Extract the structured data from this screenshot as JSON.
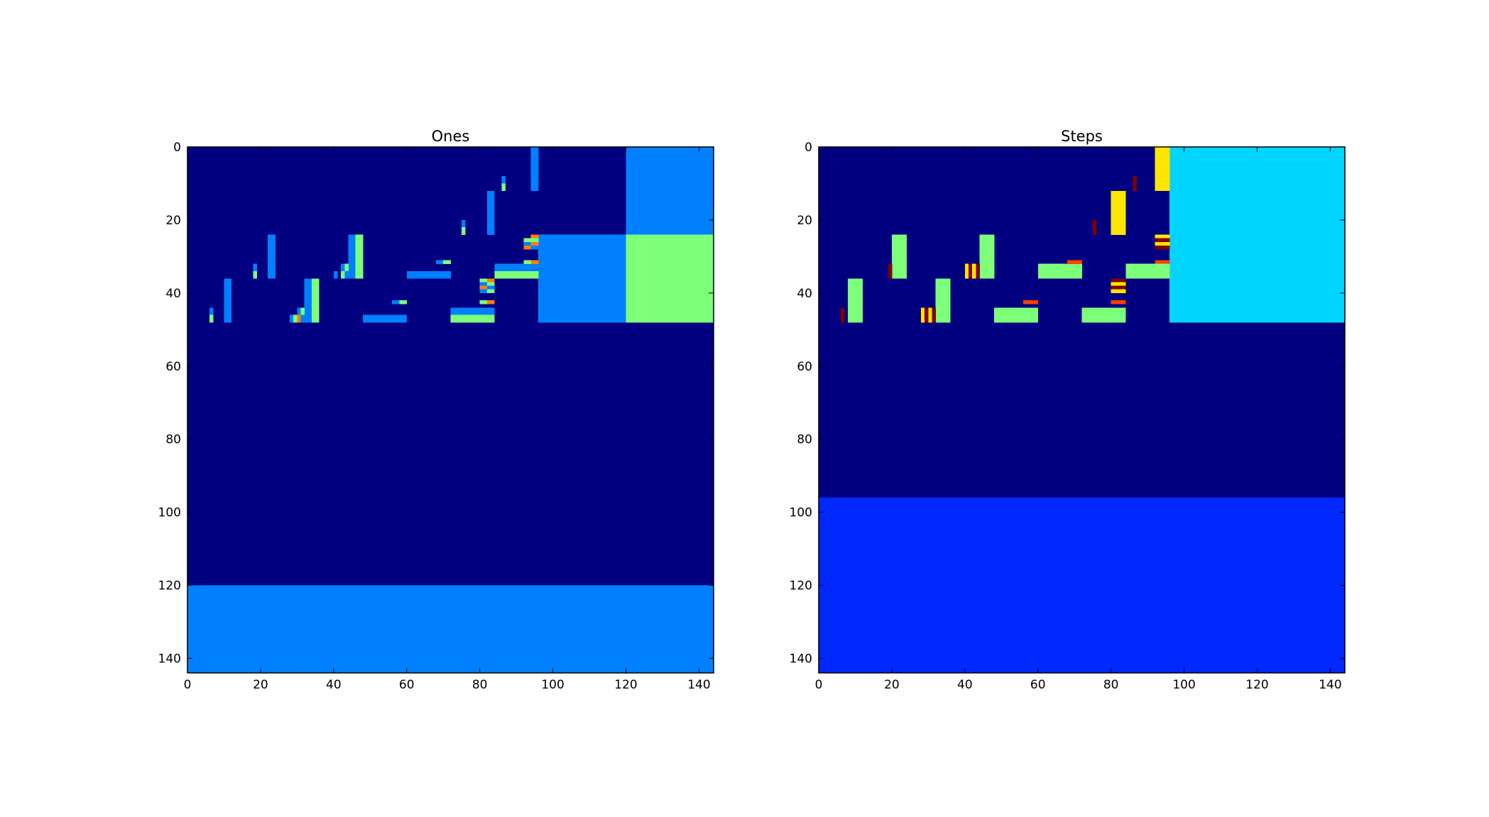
{
  "chart_data": [
    {
      "type": "heatmap",
      "title": "Ones",
      "xlim": [
        0,
        144
      ],
      "ylim": [
        144,
        0
      ],
      "xticks": [
        "0",
        "20",
        "40",
        "60",
        "80",
        "100",
        "120",
        "140"
      ],
      "yticks": [
        "0",
        "20",
        "40",
        "60",
        "80",
        "100",
        "120",
        "140"
      ],
      "colormap": "jet",
      "background_color": "#000080",
      "cells": [
        {
          "x": 120,
          "y": 0,
          "w": 24,
          "h": 24,
          "color": "#0080ff"
        },
        {
          "x": 96,
          "y": 24,
          "w": 24,
          "h": 24,
          "color": "#0080ff"
        },
        {
          "x": 120,
          "y": 24,
          "w": 24,
          "h": 24,
          "color": "#7dff7a"
        },
        {
          "x": 0,
          "y": 120,
          "w": 144,
          "h": 24,
          "color": "#0080ff"
        },
        {
          "x": 94,
          "y": 0,
          "w": 2,
          "h": 12,
          "color": "#0080ff"
        },
        {
          "x": 86,
          "y": 8,
          "w": 1,
          "h": 2,
          "color": "#0080ff"
        },
        {
          "x": 86,
          "y": 10,
          "w": 1,
          "h": 2,
          "color": "#7dff7a"
        },
        {
          "x": 82,
          "y": 12,
          "w": 2,
          "h": 12,
          "color": "#0080ff"
        },
        {
          "x": 75,
          "y": 20,
          "w": 1,
          "h": 2,
          "color": "#0080ff"
        },
        {
          "x": 75,
          "y": 22,
          "w": 1,
          "h": 2,
          "color": "#7dff7a"
        },
        {
          "x": 22,
          "y": 24,
          "w": 2,
          "h": 12,
          "color": "#0080ff"
        },
        {
          "x": 44,
          "y": 24,
          "w": 2,
          "h": 12,
          "color": "#0080ff"
        },
        {
          "x": 46,
          "y": 24,
          "w": 2,
          "h": 12,
          "color": "#7dff7a"
        },
        {
          "x": 92,
          "y": 25,
          "w": 2,
          "h": 1,
          "color": "#7dff7a"
        },
        {
          "x": 92,
          "y": 26,
          "w": 2,
          "h": 1,
          "color": "#0080ff"
        },
        {
          "x": 92,
          "y": 27,
          "w": 2,
          "h": 1,
          "color": "#ff8000"
        },
        {
          "x": 94,
          "y": 24,
          "w": 2,
          "h": 1,
          "color": "#ff8000"
        },
        {
          "x": 94,
          "y": 25,
          "w": 2,
          "h": 1,
          "color": "#7dff7a"
        },
        {
          "x": 94,
          "y": 26,
          "w": 2,
          "h": 1,
          "color": "#ff8000"
        },
        {
          "x": 94,
          "y": 27,
          "w": 2,
          "h": 1,
          "color": "#0080ff"
        },
        {
          "x": 18,
          "y": 32,
          "w": 1,
          "h": 2,
          "color": "#0080ff"
        },
        {
          "x": 18,
          "y": 34,
          "w": 1,
          "h": 2,
          "color": "#7dff7a"
        },
        {
          "x": 42,
          "y": 32,
          "w": 1,
          "h": 2,
          "color": "#0080ff"
        },
        {
          "x": 43,
          "y": 32,
          "w": 1,
          "h": 2,
          "color": "#7dff7a"
        },
        {
          "x": 42,
          "y": 34,
          "w": 1,
          "h": 2,
          "color": "#7dff7a"
        },
        {
          "x": 43,
          "y": 34,
          "w": 1,
          "h": 2,
          "color": "#0080ff"
        },
        {
          "x": 40,
          "y": 34,
          "w": 1,
          "h": 2,
          "color": "#0080ff"
        },
        {
          "x": 68,
          "y": 31,
          "w": 2,
          "h": 1,
          "color": "#0080ff"
        },
        {
          "x": 70,
          "y": 31,
          "w": 2,
          "h": 1,
          "color": "#7dff7a"
        },
        {
          "x": 60,
          "y": 34,
          "w": 12,
          "h": 2,
          "color": "#0080ff"
        },
        {
          "x": 84,
          "y": 32,
          "w": 12,
          "h": 2,
          "color": "#0080ff"
        },
        {
          "x": 84,
          "y": 34,
          "w": 12,
          "h": 2,
          "color": "#7dff7a"
        },
        {
          "x": 94,
          "y": 31,
          "w": 2,
          "h": 1,
          "color": "#ff8000"
        },
        {
          "x": 92,
          "y": 31,
          "w": 2,
          "h": 1,
          "color": "#7dff7a"
        },
        {
          "x": 80,
          "y": 36,
          "w": 2,
          "h": 1,
          "color": "#7dff7a"
        },
        {
          "x": 82,
          "y": 36,
          "w": 2,
          "h": 1,
          "color": "#ff8000"
        },
        {
          "x": 80,
          "y": 37,
          "w": 2,
          "h": 1,
          "color": "#0080ff"
        },
        {
          "x": 82,
          "y": 37,
          "w": 2,
          "h": 1,
          "color": "#7dff7a"
        },
        {
          "x": 80,
          "y": 38,
          "w": 2,
          "h": 1,
          "color": "#ff8000"
        },
        {
          "x": 82,
          "y": 38,
          "w": 2,
          "h": 1,
          "color": "#0080ff"
        },
        {
          "x": 80,
          "y": 39,
          "w": 2,
          "h": 1,
          "color": "#0080ff"
        },
        {
          "x": 82,
          "y": 39,
          "w": 2,
          "h": 1,
          "color": "#7dff7a"
        },
        {
          "x": 80,
          "y": 42,
          "w": 2,
          "h": 1,
          "color": "#7dff7a"
        },
        {
          "x": 82,
          "y": 42,
          "w": 2,
          "h": 1,
          "color": "#ff8000"
        },
        {
          "x": 10,
          "y": 36,
          "w": 2,
          "h": 12,
          "color": "#0080ff"
        },
        {
          "x": 32,
          "y": 36,
          "w": 2,
          "h": 12,
          "color": "#0080ff"
        },
        {
          "x": 34,
          "y": 36,
          "w": 2,
          "h": 12,
          "color": "#7dff7a"
        },
        {
          "x": 56,
          "y": 42,
          "w": 2,
          "h": 1,
          "color": "#0080ff"
        },
        {
          "x": 58,
          "y": 42,
          "w": 2,
          "h": 1,
          "color": "#7dff7a"
        },
        {
          "x": 6,
          "y": 44,
          "w": 1,
          "h": 2,
          "color": "#0080ff"
        },
        {
          "x": 6,
          "y": 46,
          "w": 1,
          "h": 2,
          "color": "#7dff7a"
        },
        {
          "x": 30,
          "y": 44,
          "w": 1,
          "h": 2,
          "color": "#0080ff"
        },
        {
          "x": 31,
          "y": 44,
          "w": 1,
          "h": 2,
          "color": "#7dff7a"
        },
        {
          "x": 28,
          "y": 46,
          "w": 1,
          "h": 2,
          "color": "#0080ff"
        },
        {
          "x": 29,
          "y": 46,
          "w": 1,
          "h": 2,
          "color": "#7dff7a"
        },
        {
          "x": 30,
          "y": 46,
          "w": 1,
          "h": 2,
          "color": "#ff8000"
        },
        {
          "x": 31,
          "y": 46,
          "w": 1,
          "h": 2,
          "color": "#0080ff"
        },
        {
          "x": 48,
          "y": 46,
          "w": 12,
          "h": 2,
          "color": "#0080ff"
        },
        {
          "x": 72,
          "y": 44,
          "w": 12,
          "h": 2,
          "color": "#0080ff"
        },
        {
          "x": 72,
          "y": 46,
          "w": 12,
          "h": 2,
          "color": "#7dff7a"
        }
      ]
    },
    {
      "type": "heatmap",
      "title": "Steps",
      "xlim": [
        0,
        144
      ],
      "ylim": [
        144,
        0
      ],
      "xticks": [
        "0",
        "20",
        "40",
        "60",
        "80",
        "100",
        "120",
        "140"
      ],
      "yticks": [
        "0",
        "20",
        "40",
        "60",
        "80",
        "100",
        "120",
        "140"
      ],
      "colormap": "jet",
      "background_color": "#000080",
      "cells": [
        {
          "x": 96,
          "y": 0,
          "w": 48,
          "h": 48,
          "color": "#00d5ff"
        },
        {
          "x": 0,
          "y": 96,
          "w": 144,
          "h": 48,
          "color": "#0028ff"
        },
        {
          "x": 92,
          "y": 0,
          "w": 4,
          "h": 12,
          "color": "#ffe600"
        },
        {
          "x": 86,
          "y": 8,
          "w": 1,
          "h": 4,
          "color": "#800000"
        },
        {
          "x": 80,
          "y": 12,
          "w": 4,
          "h": 12,
          "color": "#ffe600"
        },
        {
          "x": 75,
          "y": 20,
          "w": 1,
          "h": 4,
          "color": "#800000"
        },
        {
          "x": 20,
          "y": 24,
          "w": 4,
          "h": 12,
          "color": "#7dff7a"
        },
        {
          "x": 44,
          "y": 24,
          "w": 4,
          "h": 12,
          "color": "#7dff7a"
        },
        {
          "x": 92,
          "y": 24,
          "w": 4,
          "h": 1,
          "color": "#ffe600"
        },
        {
          "x": 92,
          "y": 25,
          "w": 4,
          "h": 1,
          "color": "#800000"
        },
        {
          "x": 92,
          "y": 26,
          "w": 4,
          "h": 1,
          "color": "#ffe600"
        },
        {
          "x": 92,
          "y": 27,
          "w": 4,
          "h": 1,
          "color": "#800000"
        },
        {
          "x": 92,
          "y": 31,
          "w": 4,
          "h": 1,
          "color": "#ff4000"
        },
        {
          "x": 19,
          "y": 32,
          "w": 1,
          "h": 4,
          "color": "#800000"
        },
        {
          "x": 40,
          "y": 32,
          "w": 1,
          "h": 4,
          "color": "#ffe600"
        },
        {
          "x": 41,
          "y": 32,
          "w": 1,
          "h": 4,
          "color": "#800000"
        },
        {
          "x": 42,
          "y": 32,
          "w": 1,
          "h": 4,
          "color": "#ffe600"
        },
        {
          "x": 43,
          "y": 32,
          "w": 1,
          "h": 4,
          "color": "#800000"
        },
        {
          "x": 60,
          "y": 32,
          "w": 12,
          "h": 4,
          "color": "#7dff7a"
        },
        {
          "x": 68,
          "y": 31,
          "w": 4,
          "h": 1,
          "color": "#ff4000"
        },
        {
          "x": 84,
          "y": 32,
          "w": 12,
          "h": 4,
          "color": "#7dff7a"
        },
        {
          "x": 8,
          "y": 36,
          "w": 4,
          "h": 12,
          "color": "#7dff7a"
        },
        {
          "x": 32,
          "y": 36,
          "w": 4,
          "h": 12,
          "color": "#7dff7a"
        },
        {
          "x": 80,
          "y": 36,
          "w": 4,
          "h": 1,
          "color": "#800000"
        },
        {
          "x": 80,
          "y": 37,
          "w": 4,
          "h": 1,
          "color": "#ffe600"
        },
        {
          "x": 80,
          "y": 38,
          "w": 4,
          "h": 1,
          "color": "#800000"
        },
        {
          "x": 80,
          "y": 39,
          "w": 4,
          "h": 1,
          "color": "#ffe600"
        },
        {
          "x": 80,
          "y": 42,
          "w": 4,
          "h": 1,
          "color": "#ff4000"
        },
        {
          "x": 56,
          "y": 42,
          "w": 4,
          "h": 1,
          "color": "#ff4000"
        },
        {
          "x": 6,
          "y": 44,
          "w": 1,
          "h": 4,
          "color": "#800000"
        },
        {
          "x": 28,
          "y": 44,
          "w": 1,
          "h": 4,
          "color": "#ffe600"
        },
        {
          "x": 29,
          "y": 44,
          "w": 1,
          "h": 4,
          "color": "#800000"
        },
        {
          "x": 30,
          "y": 44,
          "w": 1,
          "h": 4,
          "color": "#ffe600"
        },
        {
          "x": 31,
          "y": 44,
          "w": 1,
          "h": 4,
          "color": "#800000"
        },
        {
          "x": 48,
          "y": 44,
          "w": 12,
          "h": 4,
          "color": "#7dff7a"
        },
        {
          "x": 72,
          "y": 44,
          "w": 12,
          "h": 4,
          "color": "#7dff7a"
        }
      ]
    }
  ]
}
